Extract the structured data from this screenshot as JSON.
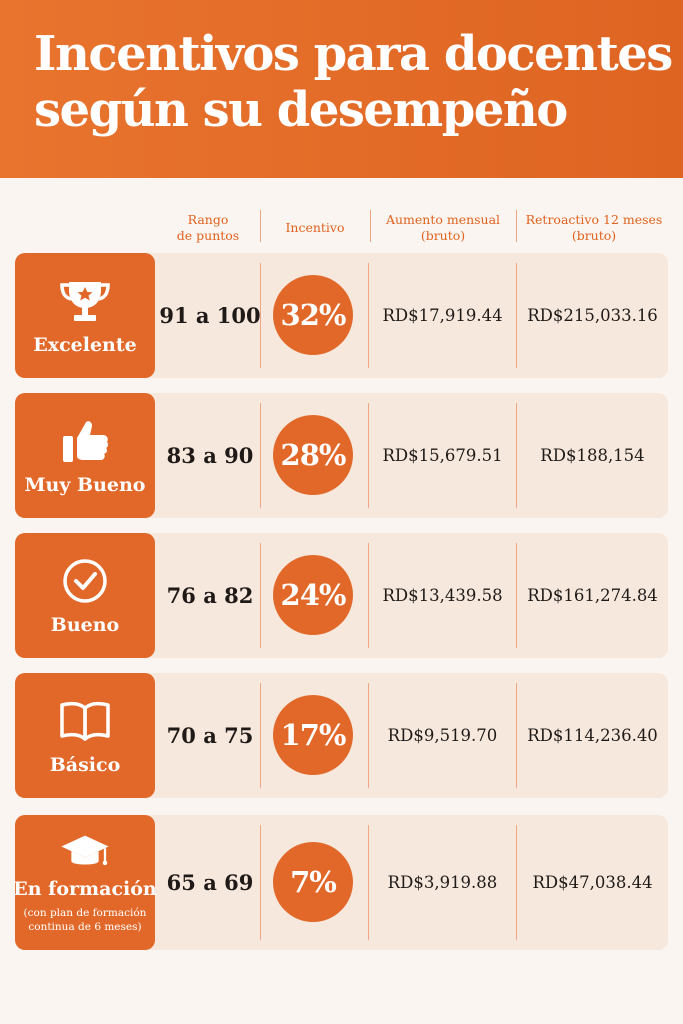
{
  "title": {
    "line1": "Incentivos para docentes",
    "line2": "según su desempeño"
  },
  "columns": {
    "range": [
      "Rango",
      "de puntos"
    ],
    "incentive": [
      "Incentivo"
    ],
    "monthly": [
      "Aumento mensual",
      "(bruto)"
    ],
    "retro": [
      "Retroactivo 12 meses",
      "(bruto)"
    ]
  },
  "rows": [
    {
      "label": "Excelente",
      "icon": "trophy-icon",
      "range": "91 a 100",
      "incentive": "32%",
      "monthly": "RD$17,919.44",
      "retro": "RD$215,033.16"
    },
    {
      "label": "Muy Bueno",
      "icon": "thumbs-up-icon",
      "range": "83 a 90",
      "incentive": "28%",
      "monthly": "RD$15,679.51",
      "retro": "RD$188,154"
    },
    {
      "label": "Bueno",
      "icon": "check-circle-icon",
      "range": "76 a 82",
      "incentive": "24%",
      "monthly": "RD$13,439.58",
      "retro": "RD$161,274.84"
    },
    {
      "label": "Básico",
      "icon": "open-book-icon",
      "range": "70 a 75",
      "incentive": "17%",
      "monthly": "RD$9,519.70",
      "retro": "RD$114,236.40"
    },
    {
      "label": "En formación",
      "icon": "graduation-cap-icon",
      "note": [
        "(con plan de formación",
        "continua de 6 meses)"
      ],
      "range": "65 a 69",
      "incentive": "7%",
      "monthly": "RD$3,919.88",
      "retro": "RD$47,038.44"
    }
  ],
  "colors": {
    "accent": "#e2682a",
    "header": "#e8742e",
    "row_bg": "#f6e8dd",
    "page_bg": "#faf5f0"
  }
}
